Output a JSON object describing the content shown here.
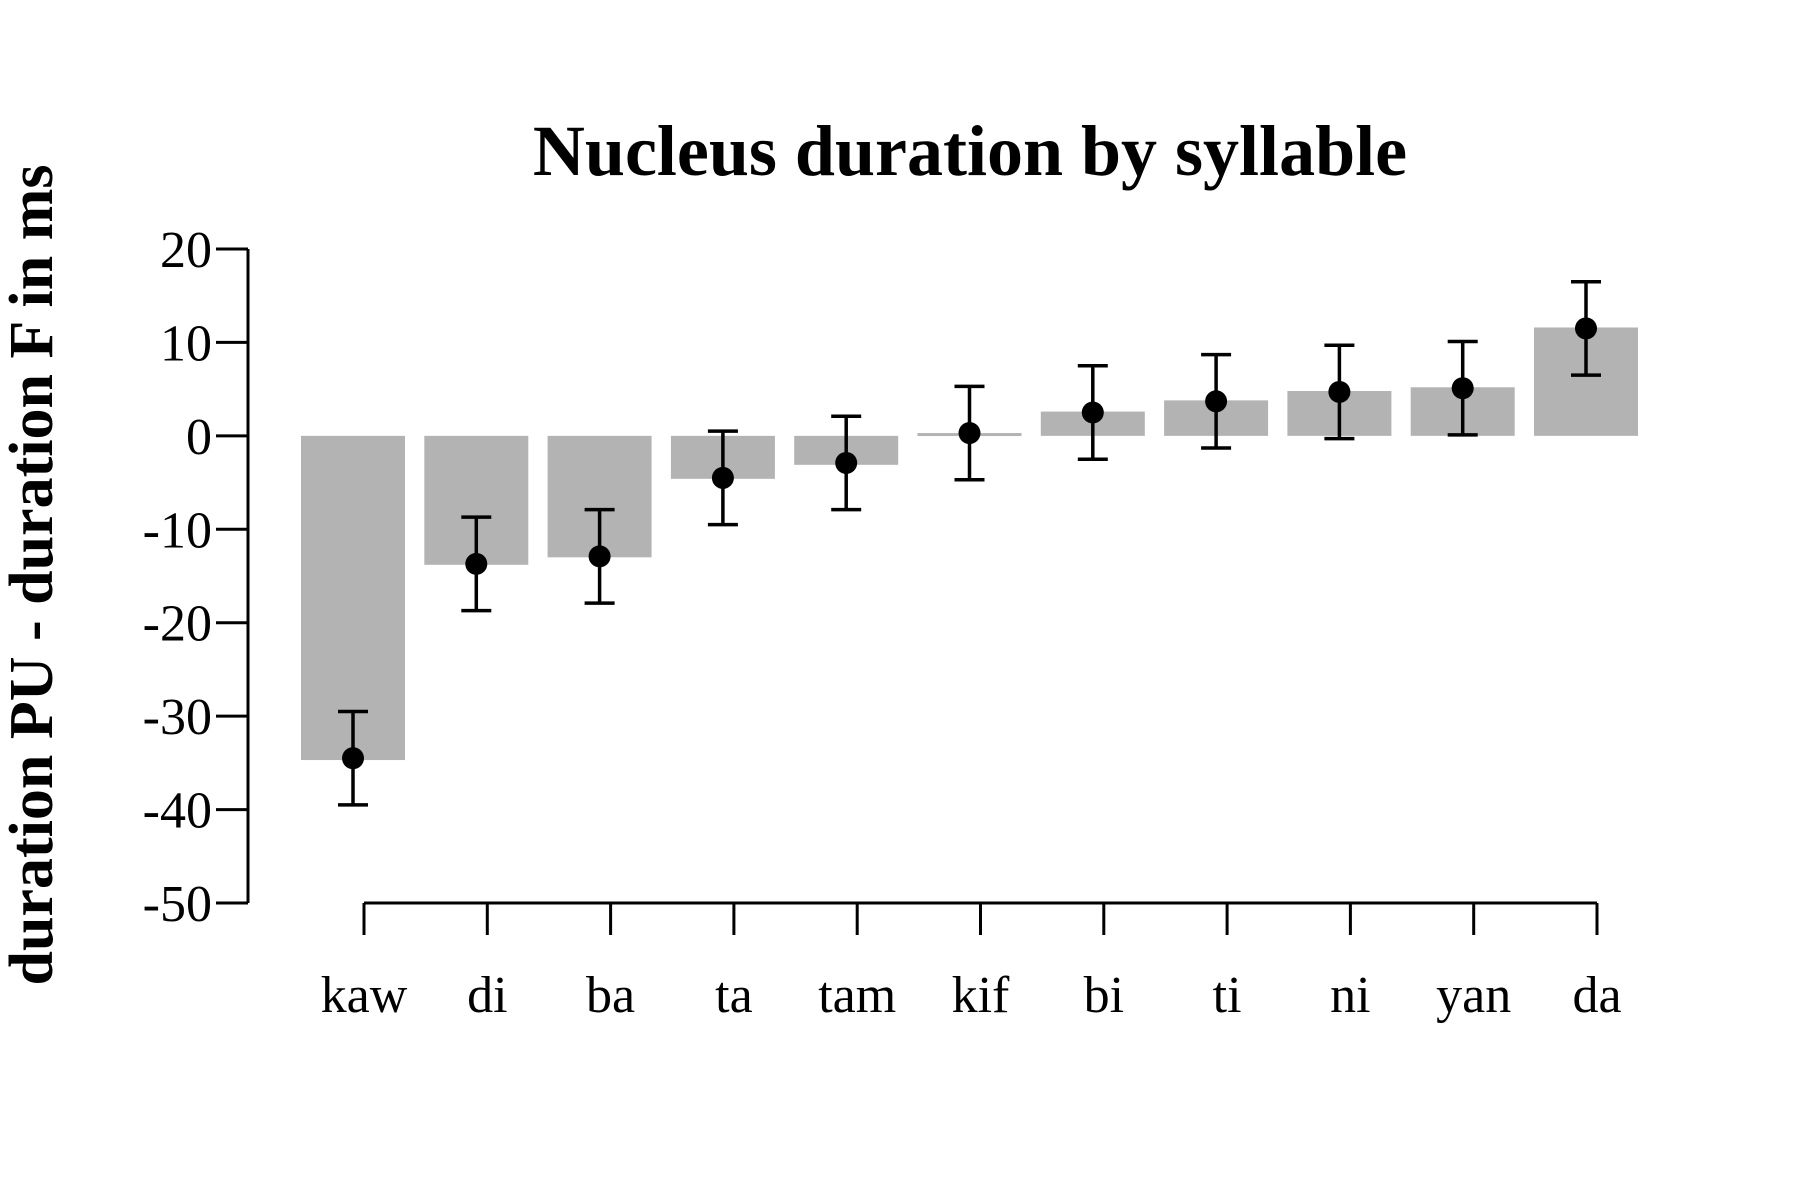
{
  "chart_data": {
    "type": "bar",
    "title": "Nucleus duration by syllable",
    "xlabel": "",
    "ylabel": "duration PU - duration F in ms",
    "ylim": [
      -50,
      20
    ],
    "yticks": [
      20,
      10,
      0,
      -10,
      -20,
      -30,
      -40,
      -50
    ],
    "ytick_labels": [
      "20",
      "10",
      "0",
      "-10",
      "-20",
      "-30",
      "-40",
      "-50"
    ],
    "categories": [
      "kaw",
      "di",
      "ba",
      "ta",
      "tam",
      "kif",
      "bi",
      "ti",
      "ni",
      "yan",
      "da"
    ],
    "values": [
      -34.7,
      -13.8,
      -13.0,
      -4.6,
      -3.1,
      0.3,
      2.6,
      3.8,
      4.8,
      5.2,
      11.6
    ],
    "points": [
      -34.5,
      -13.7,
      -12.9,
      -4.5,
      -2.9,
      0.3,
      2.5,
      3.7,
      4.7,
      5.1,
      11.5
    ],
    "error_low": [
      -39.5,
      -18.7,
      -17.9,
      -9.5,
      -7.9,
      -4.7,
      -2.5,
      -1.3,
      -0.3,
      0.1,
      6.5
    ],
    "error_high": [
      -29.5,
      -8.7,
      -7.9,
      0.5,
      2.1,
      5.3,
      7.5,
      8.7,
      9.7,
      10.1,
      16.5
    ],
    "grid": false,
    "colors": {
      "bar": "#b3b3b3",
      "point": "#000000",
      "axis": "#000000"
    }
  }
}
